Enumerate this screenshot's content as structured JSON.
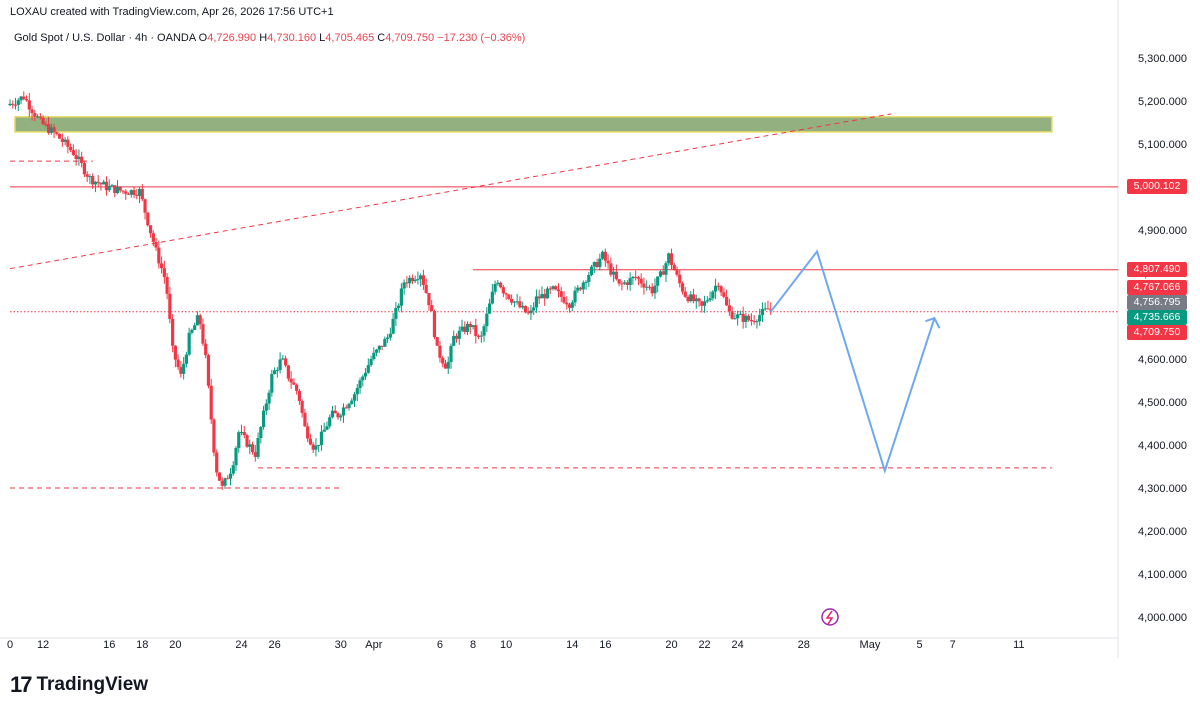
{
  "header": {
    "credit": "LOXAU created with TradingView.com, Apr 26, 2026 17:56 UTC+1",
    "symbol": "Gold Spot / U.S. Dollar · 4h · OANDA",
    "open_label": "O",
    "open": "4,726.990",
    "high_label": "H",
    "high": "4,730.160",
    "low_label": "L",
    "low": "4,705.465",
    "close_label": "C",
    "close": "4,709.750",
    "change": "−17.230 (−0.36%)"
  },
  "price_labels": [
    {
      "text": "5,000.102",
      "value": 5000.102,
      "color": "#f23645"
    },
    {
      "text": "4,807.490",
      "value": 4807.49,
      "color": "#f23645"
    },
    {
      "text": "4,767.066",
      "value": 4767.066,
      "color": "#f23645"
    },
    {
      "text": "4,756.795",
      "value": 4756.795,
      "color": "#787b86"
    },
    {
      "text": "4,735.666",
      "value": 4735.666,
      "color": "#089981"
    },
    {
      "text": "4,709.750",
      "value": 4709.75,
      "color": "#f23645"
    }
  ],
  "footer": {
    "logo_mark": "17",
    "brand": "TradingView"
  },
  "colors": {
    "up": "#089981",
    "down": "#f23645",
    "projection": "#6fa8f0",
    "zone": "#7fa36b"
  },
  "chart_data": {
    "type": "candlestick",
    "ylim": [
      3970,
      5330
    ],
    "y_ticks": [
      4000,
      4100,
      4200,
      4300,
      4400,
      4500,
      4600,
      4700,
      4800,
      4900,
      5000,
      5100,
      5200,
      5300
    ],
    "y_tick_labels": [
      "4,000.000",
      "4,100.000",
      "4,200.000",
      "4,300.000",
      "4,400.000",
      "4,500.000",
      "4,600.000",
      "4,700.000",
      "4,800.000",
      "4,900.000",
      "5,000.000",
      "5,100.000",
      "5,200.000",
      "5,300.000"
    ],
    "x_ticks": [
      {
        "day": 10,
        "label": "0"
      },
      {
        "day": 12,
        "label": "12"
      },
      {
        "day": 16,
        "label": "16"
      },
      {
        "day": 18,
        "label": "18"
      },
      {
        "day": 20,
        "label": "20"
      },
      {
        "day": 24,
        "label": "24"
      },
      {
        "day": 26,
        "label": "26"
      },
      {
        "day": 30,
        "label": "30"
      },
      {
        "day": 32,
        "label": "Apr"
      },
      {
        "day": 36,
        "label": "6"
      },
      {
        "day": 38,
        "label": "8"
      },
      {
        "day": 40,
        "label": "10"
      },
      {
        "day": 44,
        "label": "14"
      },
      {
        "day": 46,
        "label": "16"
      },
      {
        "day": 50,
        "label": "20"
      },
      {
        "day": 52,
        "label": "22"
      },
      {
        "day": 54,
        "label": "24"
      },
      {
        "day": 58,
        "label": "28"
      },
      {
        "day": 62,
        "label": "May"
      },
      {
        "day": 65,
        "label": "5"
      },
      {
        "day": 67,
        "label": "7"
      },
      {
        "day": 71,
        "label": "11"
      }
    ],
    "xlim": [
      10,
      77
    ],
    "trend_path": [
      [
        10,
        5190
      ],
      [
        11,
        5210
      ],
      [
        12,
        5150
      ],
      [
        13,
        5120
      ],
      [
        14,
        5080
      ],
      [
        15,
        5020
      ],
      [
        16,
        5000
      ],
      [
        17,
        4990
      ],
      [
        18,
        4990
      ],
      [
        19,
        4850
      ],
      [
        19.6,
        4780
      ],
      [
        20,
        4620
      ],
      [
        20.5,
        4560
      ],
      [
        21,
        4650
      ],
      [
        21.6,
        4700
      ],
      [
        22,
        4600
      ],
      [
        22.6,
        4350
      ],
      [
        23,
        4300
      ],
      [
        23.6,
        4350
      ],
      [
        24,
        4430
      ],
      [
        25,
        4380
      ],
      [
        26,
        4560
      ],
      [
        26.6,
        4600
      ],
      [
        27,
        4560
      ],
      [
        27.6,
        4520
      ],
      [
        28,
        4440
      ],
      [
        28.6,
        4390
      ],
      [
        29,
        4420
      ],
      [
        29.6,
        4470
      ],
      [
        30,
        4470
      ],
      [
        31,
        4520
      ],
      [
        32,
        4600
      ],
      [
        33,
        4650
      ],
      [
        33.6,
        4720
      ],
      [
        34,
        4780
      ],
      [
        35,
        4800
      ],
      [
        35.6,
        4720
      ],
      [
        36,
        4620
      ],
      [
        36.6,
        4580
      ],
      [
        37,
        4650
      ],
      [
        38,
        4680
      ],
      [
        38.6,
        4640
      ],
      [
        39,
        4700
      ],
      [
        39.6,
        4790
      ],
      [
        40,
        4760
      ],
      [
        41,
        4720
      ],
      [
        41.6,
        4700
      ],
      [
        42,
        4740
      ],
      [
        43,
        4760
      ],
      [
        44,
        4730
      ],
      [
        45,
        4790
      ],
      [
        46,
        4840
      ],
      [
        47,
        4770
      ],
      [
        48,
        4790
      ],
      [
        49,
        4760
      ],
      [
        49.6,
        4800
      ],
      [
        50,
        4840
      ],
      [
        50.6,
        4780
      ],
      [
        51,
        4750
      ],
      [
        52,
        4720
      ],
      [
        53,
        4780
      ],
      [
        53.6,
        4710
      ],
      [
        54,
        4700
      ],
      [
        55,
        4690
      ],
      [
        55.6,
        4705
      ],
      [
        56,
        4715
      ]
    ],
    "horizontal_levels": [
      {
        "value": 5000.102,
        "style": "solid",
        "from_day": 10,
        "to_day": 77
      },
      {
        "value": 4807.49,
        "style": "solid",
        "from_day": 38,
        "to_day": 77
      },
      {
        "value": 4709.75,
        "style": "dotted",
        "from_day": 10,
        "to_day": 77
      },
      {
        "value": 5060,
        "style": "dashed",
        "from_day": 10,
        "to_day": 15
      },
      {
        "value": 4347,
        "style": "dashed",
        "from_day": 25,
        "to_day": 73
      },
      {
        "value": 4300,
        "style": "dashed",
        "from_day": 10,
        "to_day": 30
      }
    ],
    "zone": {
      "low": 5128,
      "high": 5163,
      "from_day": 10.3,
      "to_day": 73
    },
    "trendline": {
      "from": [
        10,
        4810
      ],
      "to": [
        63.3,
        5170
      ]
    },
    "projection": [
      [
        56,
        4709.75
      ],
      [
        58.8,
        4850
      ],
      [
        62.9,
        4340
      ],
      [
        65.9,
        4695
      ]
    ]
  }
}
